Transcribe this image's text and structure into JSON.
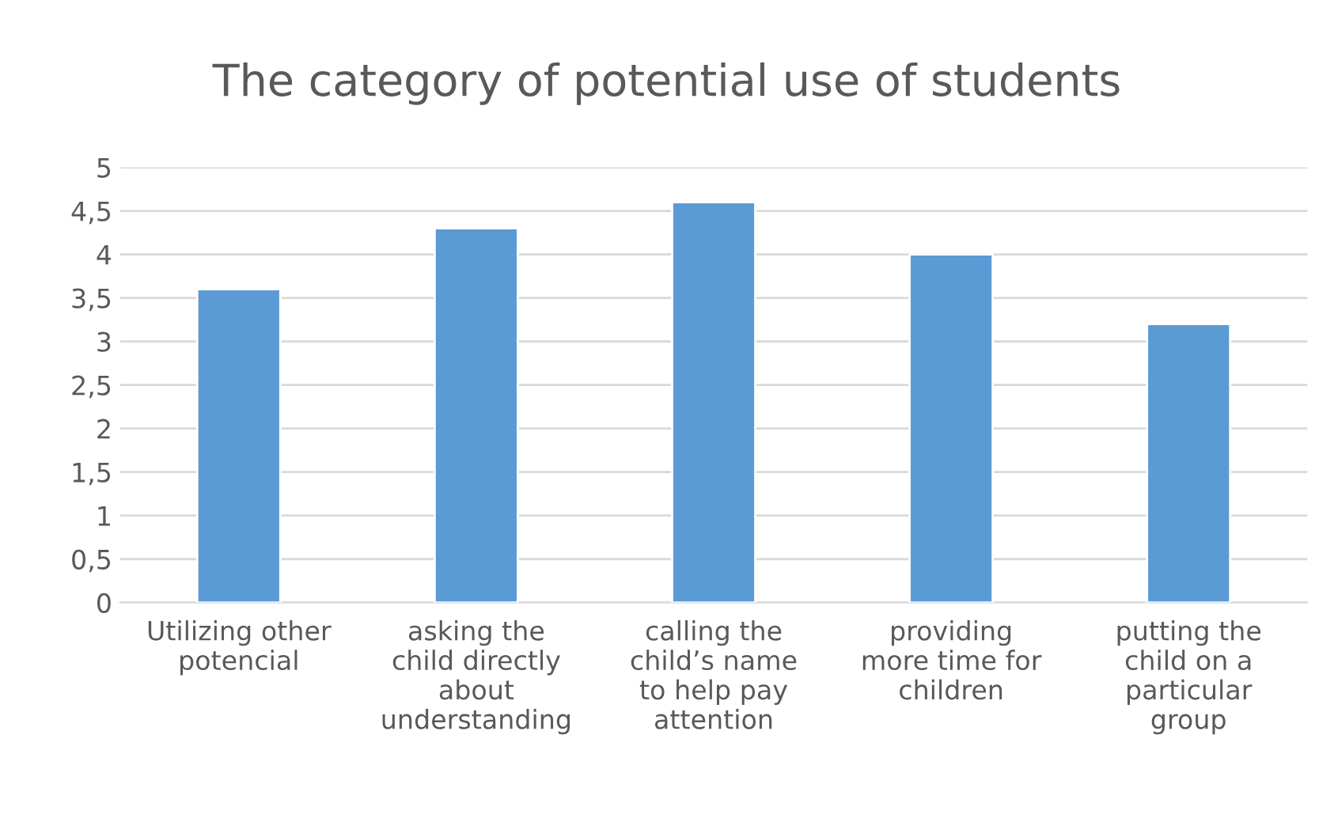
{
  "chart_data": {
    "type": "bar",
    "title": "The category of potential use of students",
    "categories": [
      "Utilizing other\npotencial",
      "asking the\nchild directly\nabout\nunderstanding",
      "calling the\nchild’s name\nto help pay\nattention",
      "providing\nmore time for\nchildren",
      "putting the\nchild on a\nparticular\ngroup"
    ],
    "values": [
      3.6,
      4.3,
      4.6,
      4.0,
      3.2
    ],
    "color": "#5b9bd5",
    "ylim": [
      0,
      5
    ],
    "yticks": [
      0,
      {
        "value": 0.5,
        "label": "0,5"
      },
      1,
      {
        "value": 1.5,
        "label": "1,5"
      },
      2,
      {
        "value": 2.5,
        "label": "2,5"
      },
      3,
      {
        "value": 3.5,
        "label": "3,5"
      },
      4,
      {
        "value": 4.5,
        "label": "4,5"
      },
      5
    ],
    "grid": "y"
  }
}
